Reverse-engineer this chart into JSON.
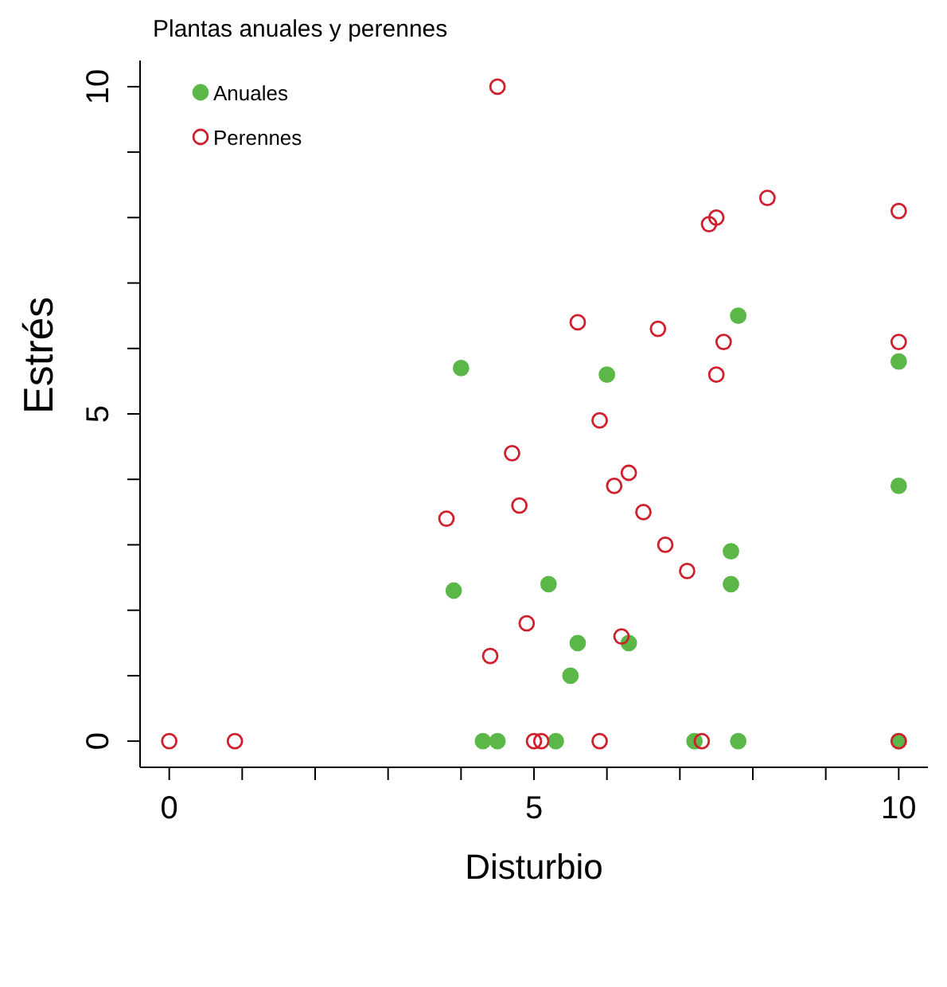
{
  "chart_data": {
    "type": "scatter",
    "title": "Plantas anuales y perennes",
    "xlabel": "Disturbio",
    "ylabel": "Estrés",
    "xlim": [
      -0.4,
      10.4
    ],
    "ylim": [
      -0.4,
      10.4
    ],
    "xticks": [
      0,
      {
        "value": 1,
        "label": null
      },
      {
        "value": 2,
        "label": null
      },
      {
        "value": 3,
        "label": null
      },
      {
        "value": 4,
        "label": null
      },
      5,
      {
        "value": 6,
        "label": null
      },
      {
        "value": 7,
        "label": null
      },
      {
        "value": 8,
        "label": null
      },
      {
        "value": 9,
        "label": null
      },
      10
    ],
    "yticks": [
      0,
      {
        "value": 1,
        "label": null
      },
      {
        "value": 2,
        "label": null
      },
      {
        "value": 3,
        "label": null
      },
      {
        "value": 4,
        "label": null
      },
      5,
      {
        "value": 6,
        "label": null
      },
      {
        "value": 7,
        "label": null
      },
      {
        "value": 8,
        "label": null
      },
      {
        "value": 9,
        "label": null
      },
      10
    ],
    "grid": false,
    "legend": "top left",
    "marker": "circle",
    "series": [
      {
        "name": "Anuales",
        "color": "#5bb848",
        "x": [
          7.8,
          4.0,
          6.0,
          10,
          10,
          7.7,
          7.7,
          3.9,
          5.2,
          5.6,
          6.3,
          5.5,
          4.3,
          4.5,
          5.3,
          7.2,
          7.8,
          10
        ],
        "values": [
          6.5,
          5.7,
          5.6,
          5.8,
          3.9,
          2.9,
          2.4,
          2.3,
          2.4,
          1.5,
          1.5,
          1.0,
          0,
          0,
          0,
          0,
          0,
          0
        ]
      },
      {
        "name": "Perennes",
        "color": "#d0202e",
        "x": [
          4.5,
          8.2,
          7.5,
          7.4,
          10,
          5.6,
          6.7,
          7.6,
          10,
          7.5,
          5.9,
          4.7,
          6.3,
          6.1,
          4.8,
          3.8,
          6.5,
          6.8,
          7.1,
          4.9,
          4.4,
          6.2,
          0,
          0.9,
          5.0,
          5.1,
          5.9,
          7.3,
          10
        ],
        "values": [
          10,
          8.3,
          8.0,
          7.9,
          8.1,
          6.4,
          6.3,
          6.1,
          6.1,
          5.6,
          4.9,
          4.4,
          4.1,
          3.9,
          3.6,
          3.4,
          3.5,
          3.0,
          2.6,
          1.8,
          1.3,
          1.6,
          0,
          0,
          0,
          0,
          0,
          0,
          0
        ]
      }
    ]
  }
}
